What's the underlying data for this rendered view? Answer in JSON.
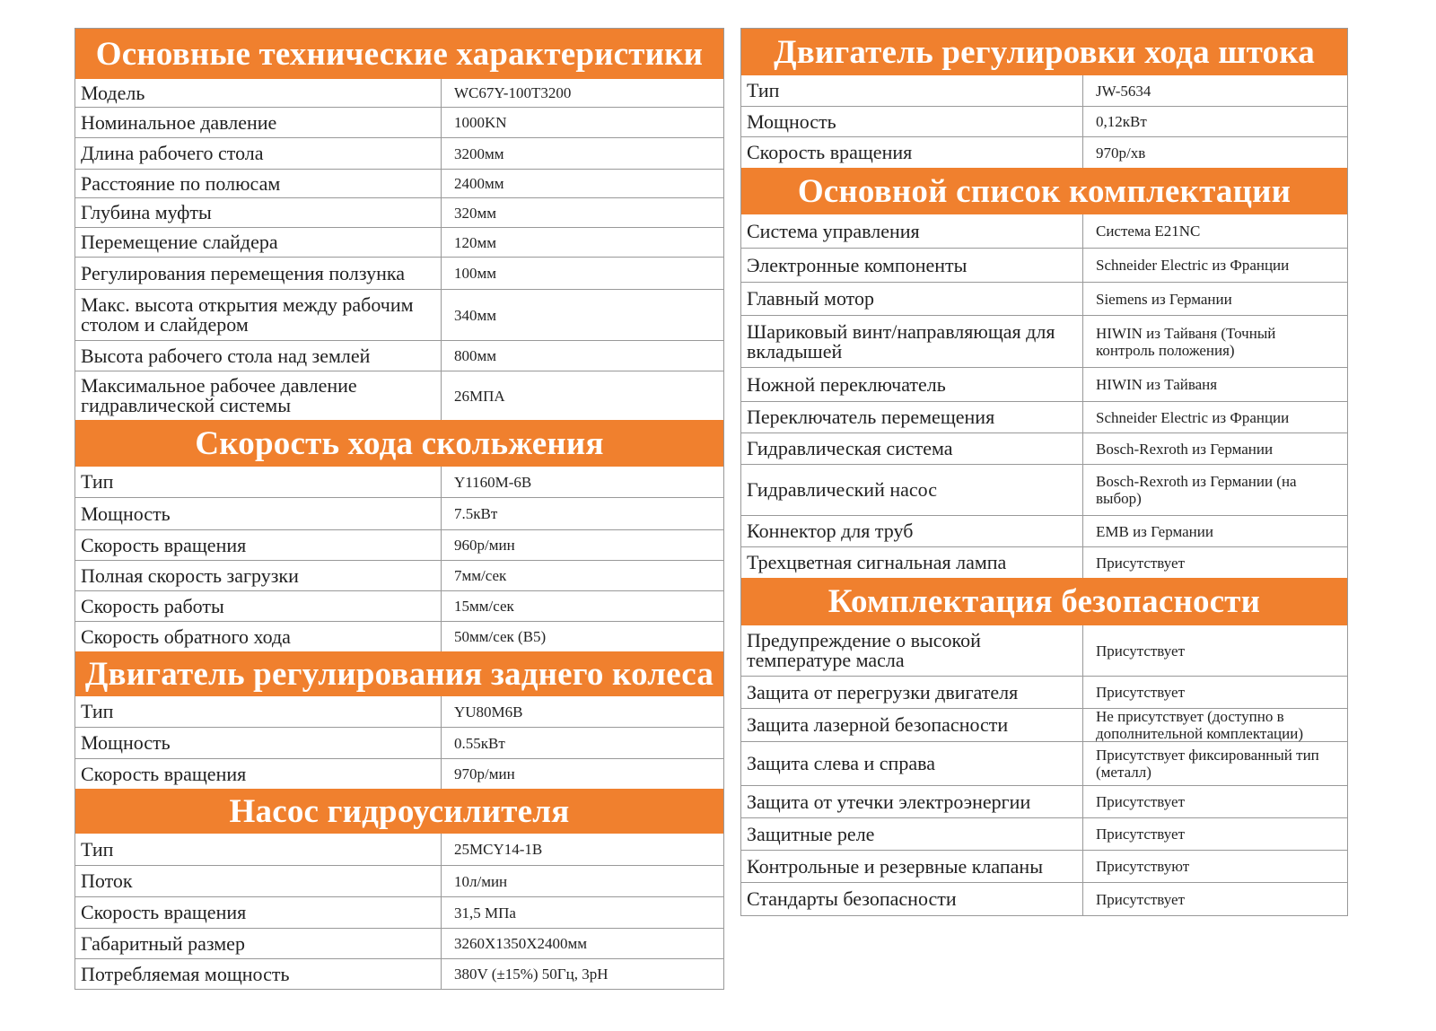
{
  "theme": {
    "accent": "#F0802E"
  },
  "left": [
    {
      "title": "Основные технические характеристики",
      "rows": [
        {
          "label": "Модель",
          "value": "WC67Y-100T3200"
        },
        {
          "label": "Номинальное давление",
          "value": "1000KN"
        },
        {
          "label": "Длина рабочего стола",
          "value": "3200мм"
        },
        {
          "label": "Расстояние по полюсам",
          "value": "2400мм"
        },
        {
          "label": "Глубина муфты",
          "value": "320мм"
        },
        {
          "label": "Перемещение слайдера",
          "value": "120мм"
        },
        {
          "label": "Регулирования перемещения ползунка",
          "value": "100мм"
        },
        {
          "label": "Макс. высота открытия между рабочим столом и слайдером",
          "value": "340мм"
        },
        {
          "label": "Высота рабочего стола над землей",
          "value": "800мм"
        },
        {
          "label": "Максимальное рабочее давление гидравлической системы",
          "value": "26МПА"
        }
      ]
    },
    {
      "title": "Скорость хода скольжения",
      "rows": [
        {
          "label": "Тип",
          "value": "Y1160M-6B"
        },
        {
          "label": "Мощность",
          "value": "7.5кВт"
        },
        {
          "label": "Скорость вращения",
          "value": "960р/мин"
        },
        {
          "label": "Полная скорость загрузки",
          "value": "7мм/сек"
        },
        {
          "label": "Скорость работы",
          "value": "15мм/сек"
        },
        {
          "label": "Скорость обратного хода",
          "value": "50мм/сек (B5)"
        }
      ]
    },
    {
      "title": "Двигатель регулирования заднего колеса",
      "rows": [
        {
          "label": "Тип",
          "value": "YU80M6B"
        },
        {
          "label": "Мощность",
          "value": "0.55кВт"
        },
        {
          "label": "Скорость вращения",
          "value": "970р/мин"
        }
      ]
    },
    {
      "title": "Насос гидроусилителя",
      "rows": [
        {
          "label": "Тип",
          "value": "25MCY14-1B"
        },
        {
          "label": "Поток",
          "value": "10л/мин"
        },
        {
          "label": "Скорость вращения",
          "value": "31,5 МПа"
        },
        {
          "label": "Габаритный размер",
          "value": "3260X1350X2400мм"
        },
        {
          "label": "Потребляемая мощность",
          "value": "380V (±15%) 50Гц, 3рН"
        }
      ]
    }
  ],
  "right": [
    {
      "title": "Двигатель регулировки хода штока",
      "rows": [
        {
          "label": "Тип",
          "value": "JW-5634"
        },
        {
          "label": "Мощность",
          "value": "0,12кВт"
        },
        {
          "label": "Скорость вращения",
          "value": "970р/хв"
        }
      ]
    },
    {
      "title": "Основной список комплектации",
      "rows": [
        {
          "label": "Система управления",
          "value": "Система E21NC"
        },
        {
          "label": "Электронные компоненты",
          "value": "Schneider Electric из Франции"
        },
        {
          "label": "Главный мотор",
          "value": "Siemens из Германии"
        },
        {
          "label": "Шариковый винт/направляющая для вкладышей",
          "value": "HIWIN из Тайваня (Точный контроль положения)"
        },
        {
          "label": "Ножной переключатель",
          "value": "HIWIN из Тайваня"
        },
        {
          "label": "Переключатель перемещения",
          "value": "Schneider Electric из Франции"
        },
        {
          "label": "Гидравлическая система",
          "value": "Bosch-Rexroth из Германии"
        },
        {
          "label": "Гидравлический насос",
          "value": "Bosch-Rexroth из Германии (на выбор)"
        },
        {
          "label": "Коннектор для труб",
          "value": "EMB из Германии"
        },
        {
          "label": "Трехцветная сигнальная лампа",
          "value": "Присутствует"
        }
      ]
    },
    {
      "title": "Комплектация безопасности",
      "rows": [
        {
          "label": "Предупреждение о высокой температуре масла",
          "value": "Присутствует"
        },
        {
          "label": "Защита от перегрузки двигателя",
          "value": "Присутствует"
        },
        {
          "label": "Защита лазерной безопасности",
          "value": "Не присутствует (доступно в дополнительной комплектации)"
        },
        {
          "label": "Защита слева и справа",
          "value": "Присутствует фиксированный тип (металл)"
        },
        {
          "label": "Защита от утечки электроэнергии",
          "value": "Присутствует"
        },
        {
          "label": "Защитные реле",
          "value": "Присутствует"
        },
        {
          "label": "Контрольные и резервные клапаны",
          "value": "Присутствуют"
        },
        {
          "label": "Стандарты безопасности",
          "value": "Присутствует"
        }
      ]
    }
  ]
}
